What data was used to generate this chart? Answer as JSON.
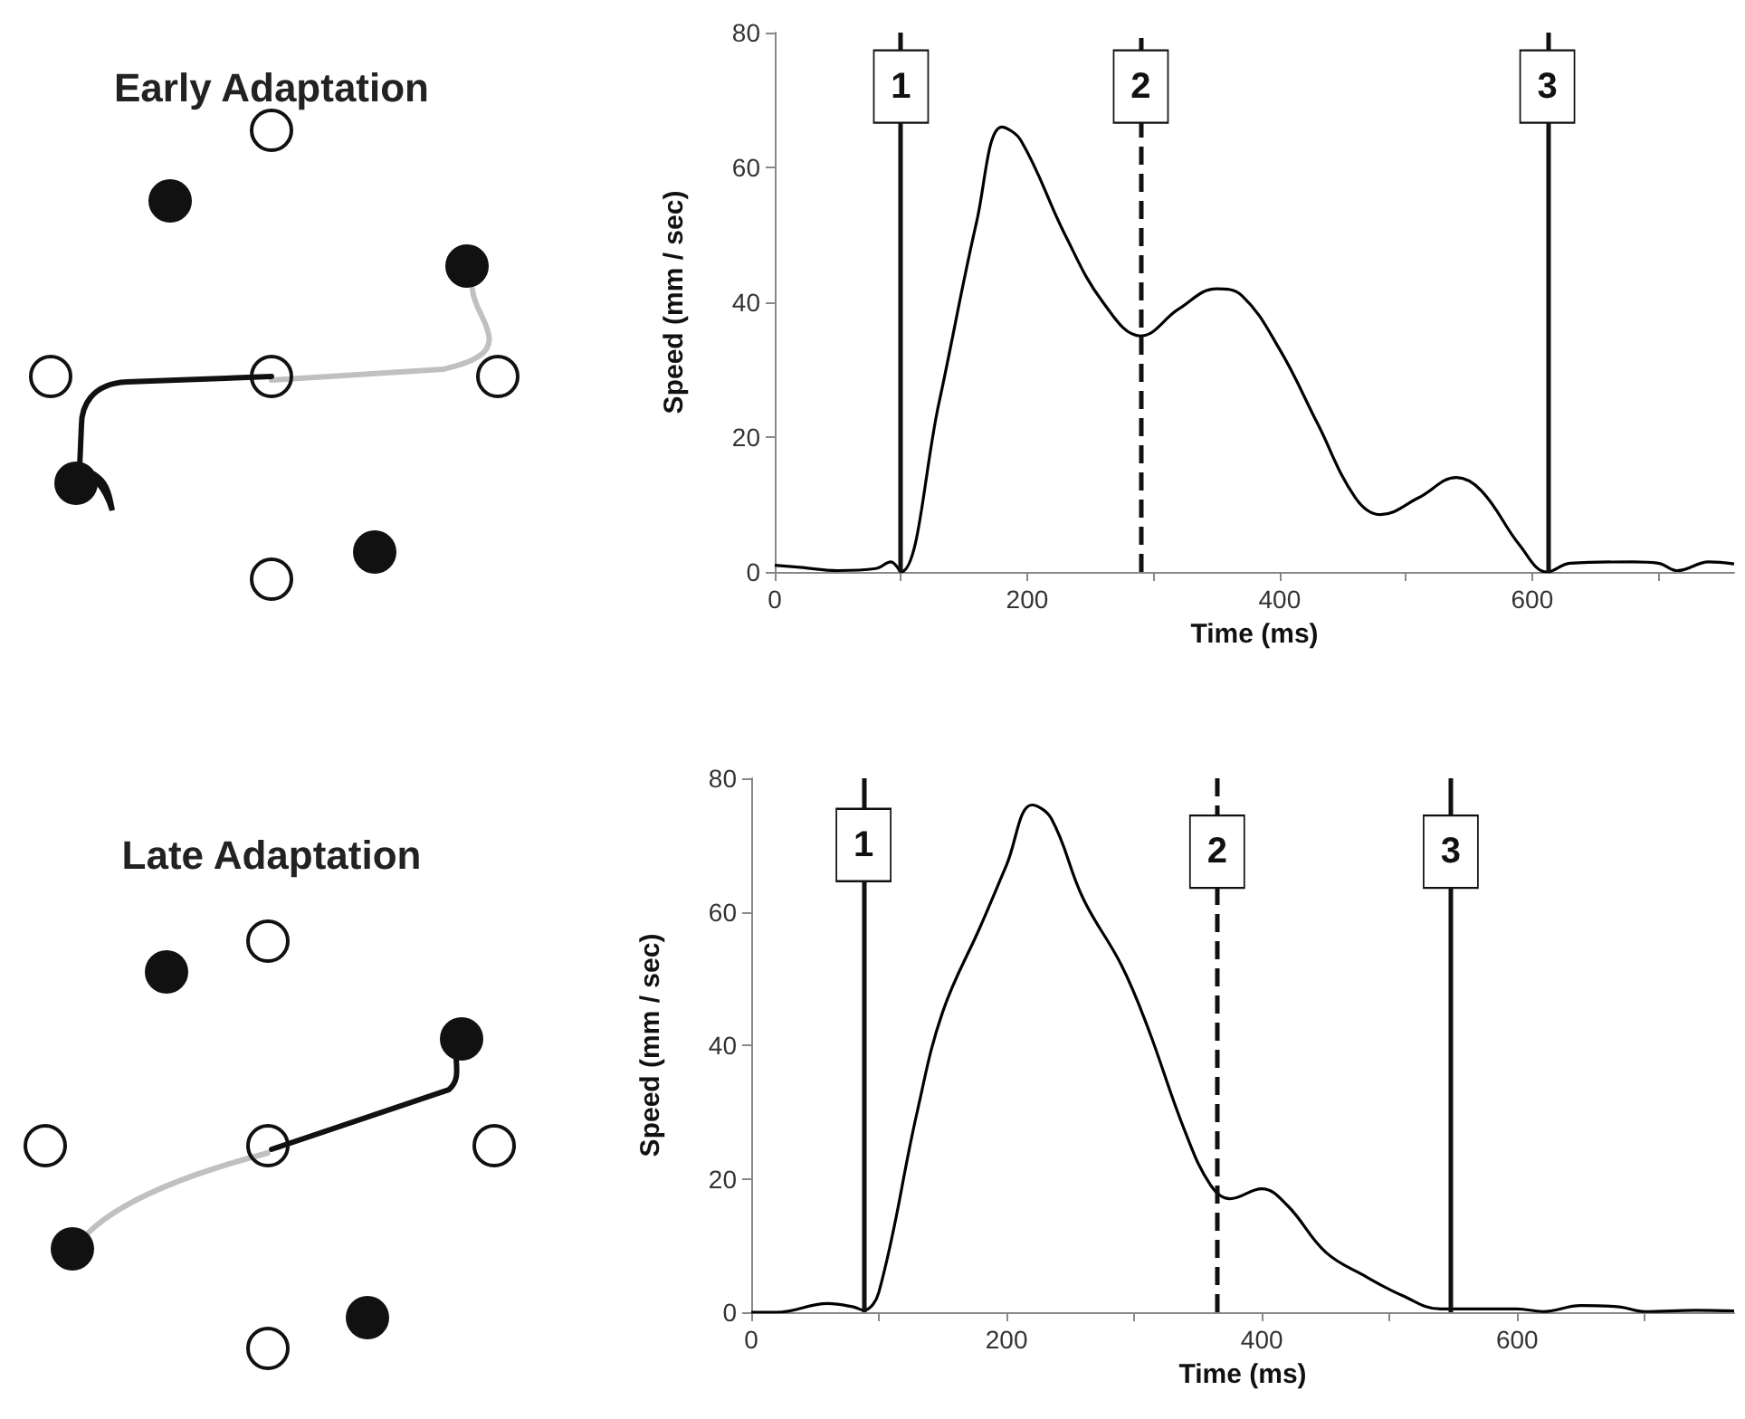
{
  "chart_data": [
    {
      "type": "other",
      "title": "Early Adaptation"
    },
    {
      "type": "line",
      "xlabel": "Time (ms)",
      "ylabel": "Speed (mm / sec)",
      "x": [
        0,
        20,
        50,
        80,
        92,
        100,
        130,
        160,
        180,
        195,
        230,
        260,
        290,
        320,
        350,
        370,
        400,
        430,
        460,
        480,
        510,
        540,
        560,
        590,
        612,
        630,
        680,
        700,
        715,
        740,
        760
      ],
      "series": [
        {
          "color": "#000000",
          "values": [
            1,
            0.7,
            0.2,
            0.5,
            1.5,
            0,
            25,
            52,
            66,
            64,
            50,
            40,
            35,
            39,
            42,
            41,
            33,
            22,
            11,
            8.5,
            11,
            14,
            12,
            4,
            0,
            1.3,
            1.5,
            1.3,
            0.2,
            1.5,
            1.2
          ]
        }
      ],
      "xlim": [
        0,
        760
      ],
      "xticks": [
        0,
        {
          "value": 100,
          "label": null
        },
        200,
        {
          "value": 300,
          "label": null
        },
        400,
        {
          "value": 500,
          "label": null
        },
        600,
        {
          "value": 700,
          "label": null
        }
      ],
      "ylim": [
        0,
        80
      ],
      "yticks": [
        0,
        20,
        40,
        60,
        80
      ],
      "grid": false,
      "ref_lines": [
        {
          "axis": "x",
          "value": 100,
          "line_style": "solid"
        },
        {
          "axis": "x",
          "value": 290,
          "line_style": "dashed"
        },
        {
          "axis": "x",
          "value": 612,
          "line_style": "solid"
        }
      ],
      "annotations": [
        {
          "text": "1",
          "x": 100,
          "y": 72
        },
        {
          "text": "2",
          "x": 290,
          "y": 72
        },
        {
          "text": "3",
          "x": 612,
          "y": 72
        }
      ]
    },
    {
      "type": "other",
      "title": "Late Adaptation"
    },
    {
      "type": "line",
      "xlabel": "Time (ms)",
      "ylabel": "Speed (mm / sec)",
      "x": [
        0,
        20,
        60,
        80,
        88,
        100,
        130,
        150,
        180,
        200,
        220,
        235,
        260,
        290,
        310,
        340,
        360,
        375,
        400,
        420,
        450,
        480,
        510,
        540,
        600,
        620,
        650,
        680,
        700,
        740,
        770
      ],
      "series": [
        {
          "color": "#000000",
          "values": [
            0,
            0,
            1.3,
            0.8,
            0.3,
            3,
            30,
            45,
            58,
            67,
            76,
            74,
            62,
            52,
            43,
            27,
            19,
            17,
            18.5,
            16,
            9,
            5.5,
            2.5,
            0.5,
            0.5,
            0.1,
            1,
            0.8,
            0.1,
            0.3,
            0.2
          ]
        }
      ],
      "xlim": [
        0,
        770
      ],
      "xticks": [
        0,
        {
          "value": 100,
          "label": null
        },
        200,
        {
          "value": 300,
          "label": null
        },
        400,
        {
          "value": 500,
          "label": null
        },
        600,
        {
          "value": 700,
          "label": null
        }
      ],
      "ylim": [
        0,
        80
      ],
      "yticks": [
        0,
        20,
        40,
        60,
        80
      ],
      "grid": false,
      "ref_lines": [
        {
          "axis": "x",
          "value": 88,
          "line_style": "solid"
        },
        {
          "axis": "x",
          "value": 365,
          "line_style": "dashed"
        },
        {
          "axis": "x",
          "value": 548,
          "line_style": "solid"
        }
      ],
      "annotations": [
        {
          "text": "1",
          "x": 88,
          "y": 70
        },
        {
          "text": "2",
          "x": 365,
          "y": 69
        },
        {
          "text": "3",
          "x": 548,
          "y": 69
        }
      ]
    }
  ]
}
